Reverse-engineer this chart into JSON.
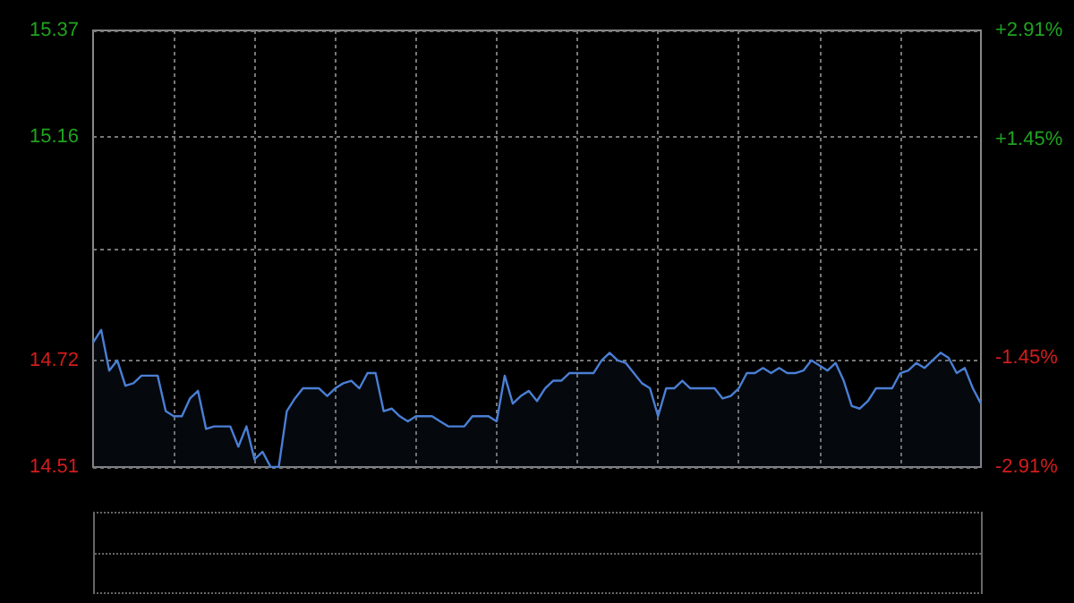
{
  "chart_data": {
    "type": "area",
    "categories": [
      null,
      null,
      null,
      null,
      null,
      null,
      null,
      null,
      null,
      null,
      null,
      null,
      null,
      null,
      null,
      null,
      null,
      null,
      null,
      null,
      null,
      null,
      null,
      null,
      null,
      null,
      null,
      null,
      null,
      null,
      null,
      null,
      null,
      null,
      null,
      null,
      null,
      null,
      null,
      null,
      null,
      null,
      null,
      null,
      null,
      null,
      null,
      null,
      null,
      null,
      null,
      null,
      null,
      null,
      null,
      null,
      null,
      null,
      null,
      null,
      null,
      null,
      null,
      null,
      null,
      null,
      null,
      null,
      null,
      null,
      null,
      null,
      null,
      null,
      null,
      null,
      null,
      null,
      null,
      null,
      null,
      null,
      null,
      null,
      null,
      null,
      null,
      null,
      null,
      null,
      null,
      null,
      null,
      null,
      null,
      null,
      null,
      null,
      null,
      null,
      null,
      null,
      null,
      null,
      null,
      null,
      null,
      null,
      null,
      null,
      null
    ],
    "series": [
      {
        "color": "#4a7fd4",
        "values": [
          14.755,
          14.78,
          14.7,
          14.72,
          14.67,
          14.675,
          14.69,
          14.69,
          14.69,
          14.62,
          14.61,
          14.61,
          14.645,
          14.66,
          14.585,
          14.59,
          14.59,
          14.59,
          14.55,
          14.59,
          14.525,
          14.54,
          14.51,
          14.51,
          14.62,
          14.645,
          14.665,
          14.665,
          14.665,
          14.65,
          14.665,
          14.675,
          14.68,
          14.665,
          14.695,
          14.695,
          14.62,
          14.625,
          14.61,
          14.6,
          14.61,
          14.61,
          14.61,
          14.6,
          14.59,
          14.59,
          14.59,
          14.61,
          14.61,
          14.61,
          14.6,
          14.69,
          14.635,
          14.65,
          14.66,
          14.64,
          14.665,
          14.68,
          14.68,
          14.695,
          14.695,
          14.695,
          14.695,
          14.72,
          14.735,
          14.72,
          14.715,
          14.695,
          14.675,
          14.665,
          14.61,
          14.665,
          14.665,
          14.68,
          14.665,
          14.665,
          14.665,
          14.665,
          14.645,
          14.65,
          14.665,
          14.695,
          14.695,
          14.705,
          14.695,
          14.705,
          14.695,
          14.695,
          14.7,
          14.72,
          14.71,
          14.7,
          14.715,
          14.68,
          14.63,
          14.625,
          14.64,
          14.665,
          14.665,
          14.665,
          14.695,
          14.7,
          14.715,
          14.705,
          14.72,
          14.735,
          14.725,
          14.695,
          14.705,
          14.665,
          14.635
        ]
      }
    ],
    "ylim": [
      14.51,
      15.37
    ],
    "yticks": [
      15.37,
      15.16,
      {
        "value": 14.94,
        "label": null
      },
      14.72,
      14.51
    ],
    "y2lim": [
      -2.91,
      2.91
    ],
    "y2ticks": [
      {
        "value": 2.91,
        "label": "+2.91%"
      },
      {
        "value": 1.45,
        "label": "+1.45%"
      },
      {
        "value": -1.45,
        "label": "-1.45%"
      },
      {
        "value": -2.91,
        "label": "-2.91%"
      }
    ],
    "grid": true
  }
}
